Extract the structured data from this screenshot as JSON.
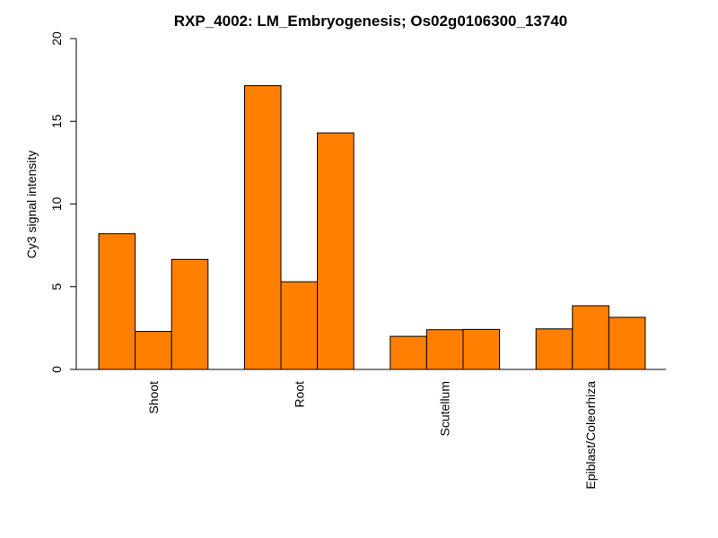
{
  "chart_data": {
    "type": "bar",
    "title": "RXP_4002: LM_Embryogenesis; Os02g0106300_13740",
    "ylabel": "Cy3 signal intensity",
    "xlabel": "",
    "ylim": [
      0,
      20
    ],
    "yticks": [
      0,
      5,
      10,
      15,
      20
    ],
    "bar_color": "#FF7F00",
    "categories": [
      "Shoot",
      "Root",
      "Scutellum",
      "Epiblast/Coleorhiza"
    ],
    "values": [
      [
        8.2,
        2.3,
        6.65
      ],
      [
        17.15,
        5.3,
        14.3
      ],
      [
        2.0,
        2.4,
        2.42
      ],
      [
        2.45,
        3.85,
        3.15
      ]
    ],
    "grid": false,
    "legend": false
  }
}
